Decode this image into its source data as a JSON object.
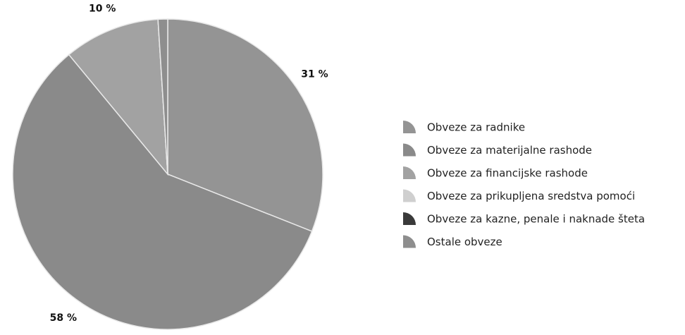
{
  "chart_data": {
    "type": "pie",
    "categories": [
      "Obveze za radnike",
      "Obveze za materijalne rashode",
      "Obveze za financijske rashode",
      "Obveze za prikupljena sredstva pomoći",
      "Obveze za kazne, penale i naknade šteta",
      "Ostale obveze"
    ],
    "values": [
      31,
      58,
      10,
      0,
      0,
      1
    ],
    "value_labels": [
      "31 %",
      "58 %",
      "10 %",
      null,
      null,
      null
    ],
    "colors": [
      "#949494",
      "#8a8a8a",
      "#a2a2a2",
      "#cfcfcf",
      "#3a3a3a",
      "#8e8e8e"
    ],
    "legend": "right"
  }
}
